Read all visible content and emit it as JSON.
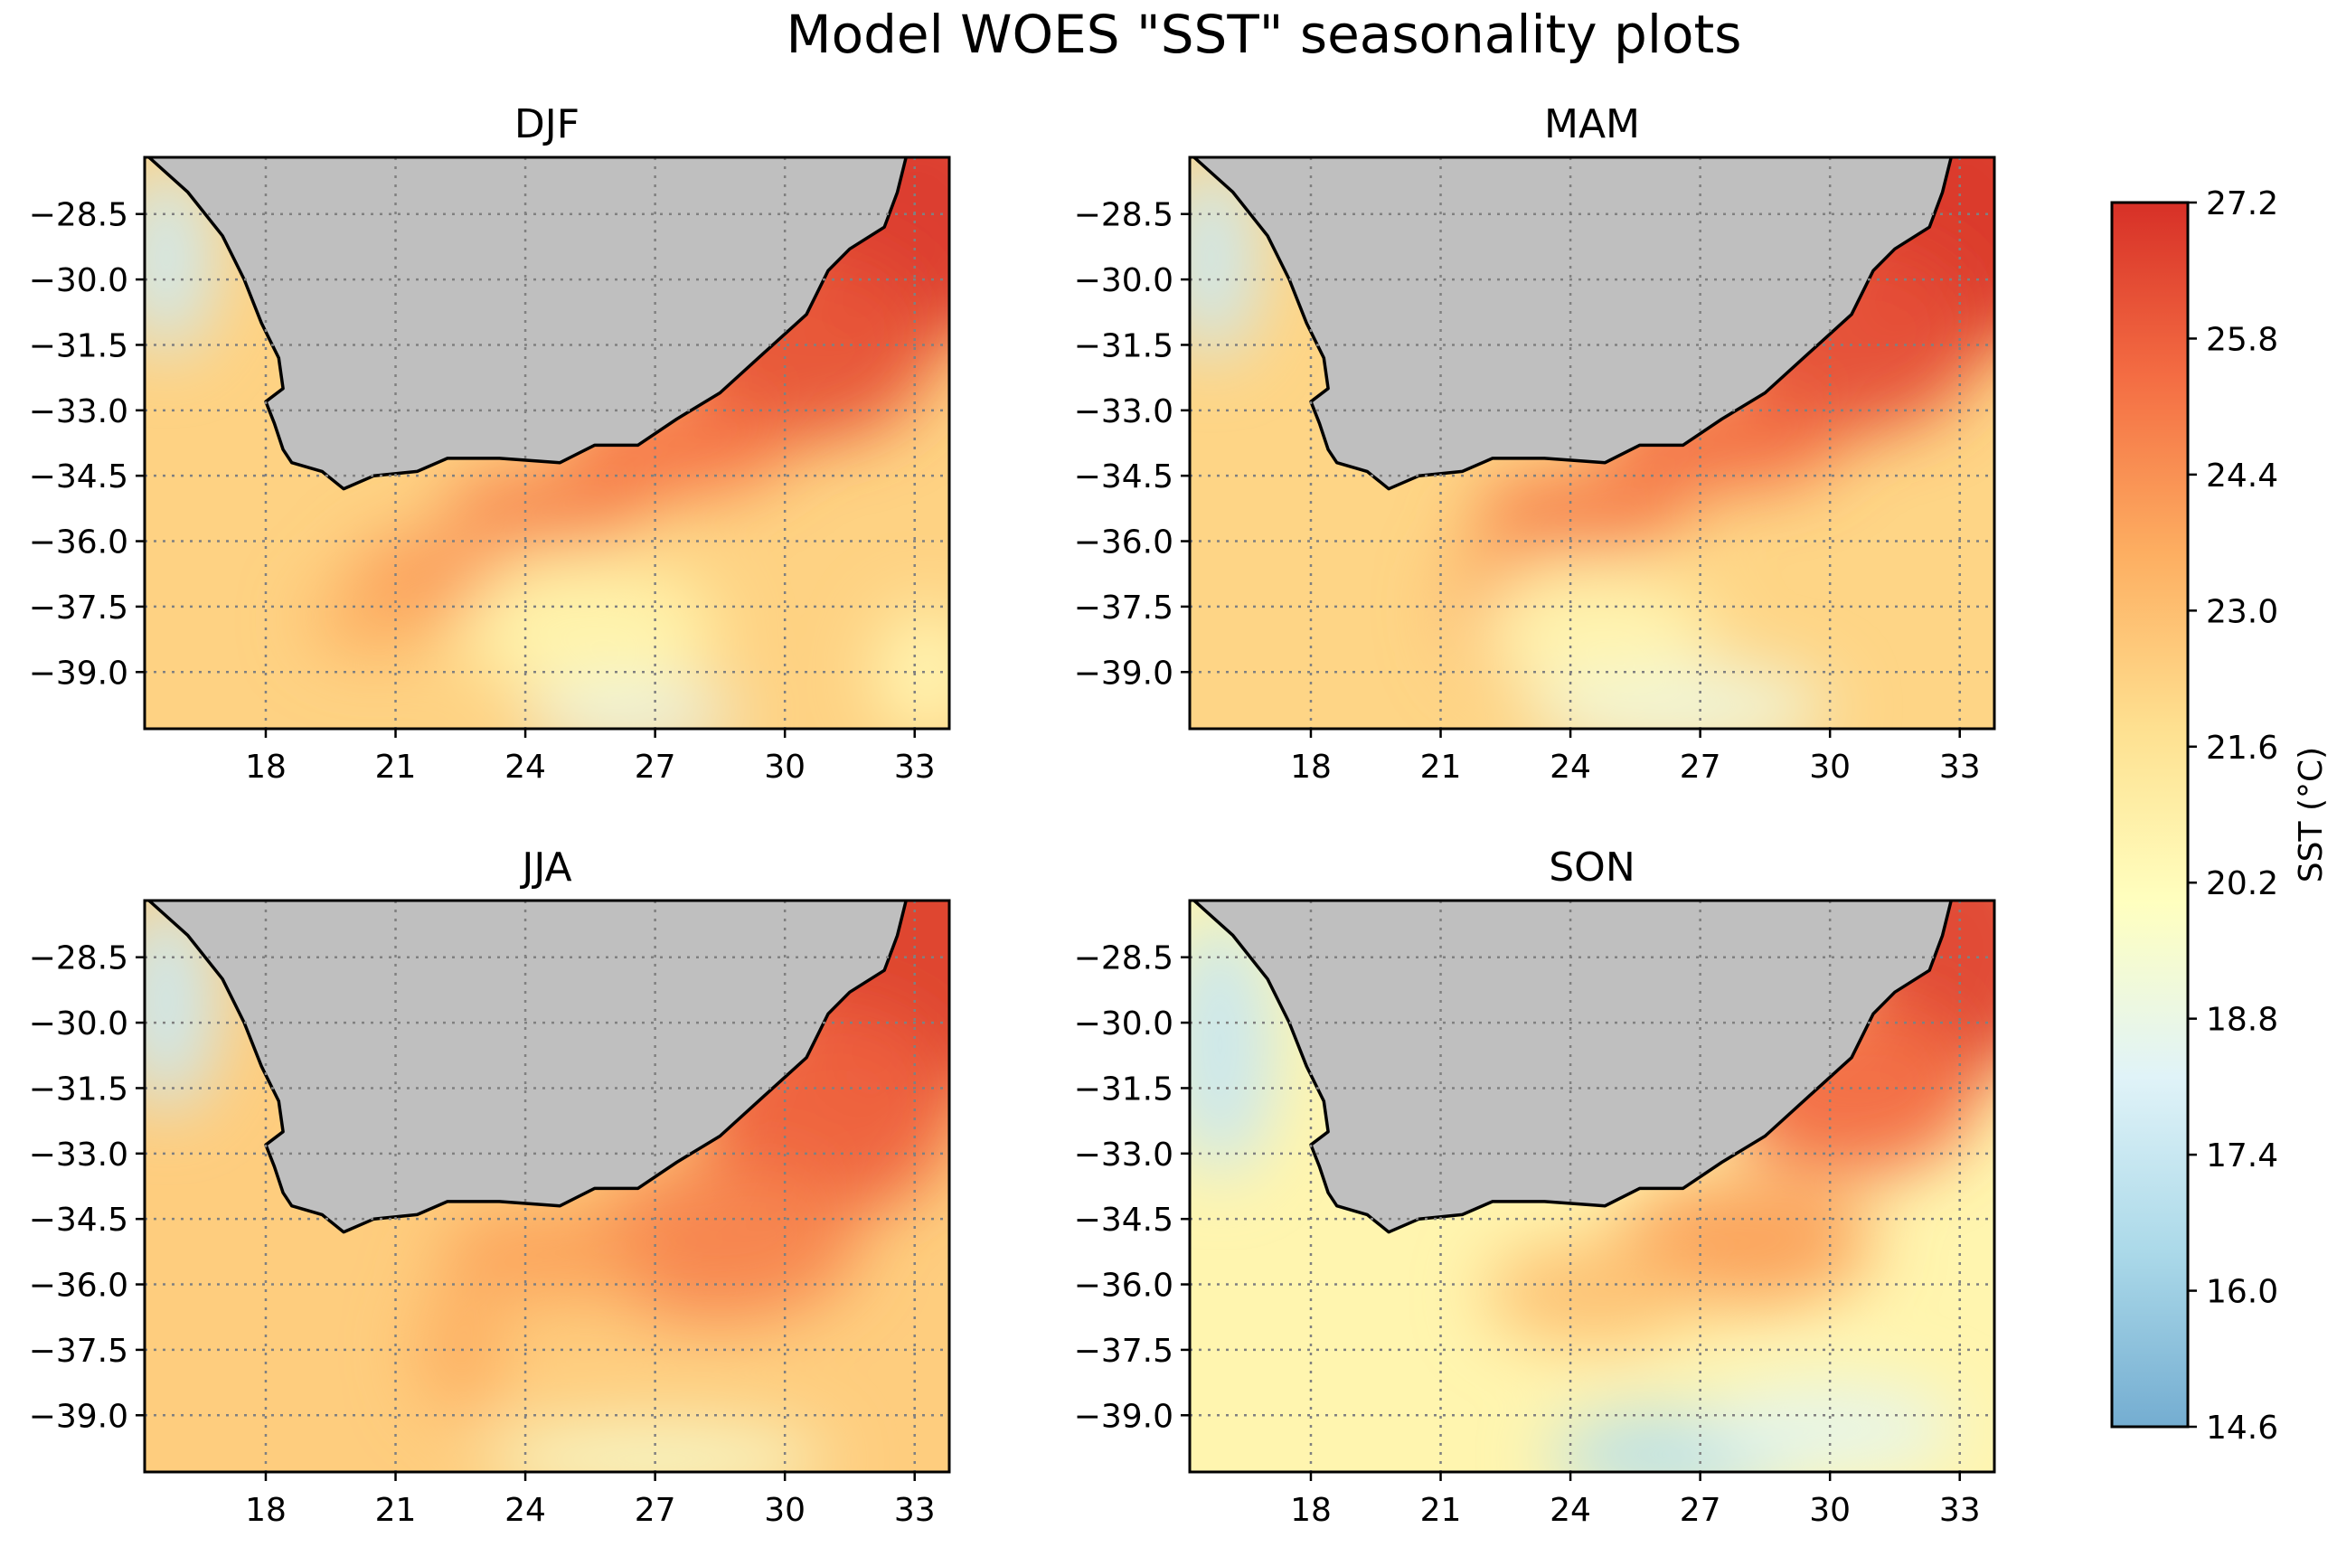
{
  "title": "Model WOES \"SST\" seasonality plots",
  "chart_data": {
    "type": "heatmap",
    "title": "Model WOES \"SST\" seasonality plots",
    "xlim": [
      15.2,
      33.8
    ],
    "ylim": [
      -40.3,
      -27.2
    ],
    "x_ticks": [
      18,
      21,
      24,
      27,
      30,
      33
    ],
    "x_tick_labels": [
      "18",
      "21",
      "24",
      "27",
      "30",
      "33"
    ],
    "y_ticks": [
      -28.5,
      -30.0,
      -31.5,
      -33.0,
      -34.5,
      -36.0,
      -37.5,
      -39.0
    ],
    "y_tick_labels": [
      "−28.5",
      "−30.0",
      "−31.5",
      "−33.0",
      "−34.5",
      "−36.0",
      "−37.5",
      "−39.0"
    ],
    "grid": "dotted",
    "land_color": "#bfbfbf",
    "coastline": [
      [
        15.3,
        -27.2
      ],
      [
        16.2,
        -28.0
      ],
      [
        17.0,
        -29.0
      ],
      [
        17.5,
        -30.0
      ],
      [
        17.9,
        -31.0
      ],
      [
        18.3,
        -31.8
      ],
      [
        18.4,
        -32.5
      ],
      [
        18.0,
        -32.8
      ],
      [
        18.2,
        -33.3
      ],
      [
        18.4,
        -33.9
      ],
      [
        18.6,
        -34.2
      ],
      [
        19.3,
        -34.4
      ],
      [
        19.8,
        -34.8
      ],
      [
        20.5,
        -34.5
      ],
      [
        21.5,
        -34.4
      ],
      [
        22.2,
        -34.1
      ],
      [
        23.4,
        -34.1
      ],
      [
        24.8,
        -34.2
      ],
      [
        25.6,
        -33.8
      ],
      [
        26.6,
        -33.8
      ],
      [
        27.5,
        -33.2
      ],
      [
        28.5,
        -32.6
      ],
      [
        29.5,
        -31.7
      ],
      [
        30.5,
        -30.8
      ],
      [
        31.0,
        -29.8
      ],
      [
        31.5,
        -29.3
      ],
      [
        32.3,
        -28.8
      ],
      [
        32.6,
        -28.0
      ],
      [
        32.8,
        -27.2
      ]
    ],
    "panels": [
      {
        "title": "DJF",
        "base_sst": 22.3,
        "features": [
          {
            "kind": "warm",
            "x": 33.0,
            "y": -28.5,
            "sst": 27.0,
            "rx": 3.0,
            "ry": 3.0
          },
          {
            "kind": "warm",
            "x": 30.5,
            "y": -31.5,
            "sst": 26.2,
            "rx": 3.0,
            "ry": 2.2
          },
          {
            "kind": "warm",
            "x": 27.5,
            "y": -33.8,
            "sst": 25.3,
            "rx": 2.6,
            "ry": 1.1
          },
          {
            "kind": "warm",
            "x": 24.5,
            "y": -35.2,
            "sst": 24.8,
            "rx": 2.4,
            "ry": 0.9
          },
          {
            "kind": "warm",
            "x": 21.8,
            "y": -36.8,
            "sst": 24.3,
            "rx": 1.8,
            "ry": 0.9
          },
          {
            "kind": "warm",
            "x": 20.5,
            "y": -37.8,
            "sst": 23.6,
            "rx": 1.5,
            "ry": 0.8
          },
          {
            "kind": "cool",
            "x": 15.7,
            "y": -29.5,
            "sst": 17.6,
            "rx": 1.1,
            "ry": 2.2
          },
          {
            "kind": "cool",
            "x": 26.5,
            "y": -40.0,
            "sst": 18.5,
            "rx": 2.5,
            "ry": 0.7
          },
          {
            "kind": "cool",
            "x": 25.5,
            "y": -38.0,
            "sst": 20.6,
            "rx": 3.0,
            "ry": 1.5
          },
          {
            "kind": "cool",
            "x": 33.3,
            "y": -39.0,
            "sst": 20.4,
            "rx": 1.2,
            "ry": 1.5
          }
        ]
      },
      {
        "title": "MAM",
        "base_sst": 22.2,
        "features": [
          {
            "kind": "warm",
            "x": 33.0,
            "y": -28.5,
            "sst": 27.1,
            "rx": 3.0,
            "ry": 3.2
          },
          {
            "kind": "warm",
            "x": 30.5,
            "y": -31.3,
            "sst": 26.3,
            "rx": 3.0,
            "ry": 2.2
          },
          {
            "kind": "warm",
            "x": 27.5,
            "y": -33.7,
            "sst": 25.5,
            "rx": 2.8,
            "ry": 1.1
          },
          {
            "kind": "warm",
            "x": 24.3,
            "y": -35.3,
            "sst": 25.0,
            "rx": 2.5,
            "ry": 0.9
          },
          {
            "kind": "warm",
            "x": 22.2,
            "y": -37.5,
            "sst": 24.0,
            "rx": 1.0,
            "ry": 1.6
          },
          {
            "kind": "cool",
            "x": 15.7,
            "y": -29.5,
            "sst": 17.5,
            "rx": 1.1,
            "ry": 2.3
          },
          {
            "kind": "cool",
            "x": 26.5,
            "y": -39.8,
            "sst": 19.0,
            "rx": 3.5,
            "ry": 1.0
          },
          {
            "kind": "cool",
            "x": 24.5,
            "y": -38.0,
            "sst": 20.5,
            "rx": 2.8,
            "ry": 1.3
          }
        ]
      },
      {
        "title": "JJA",
        "base_sst": 22.5,
        "features": [
          {
            "kind": "warm",
            "x": 33.0,
            "y": -28.5,
            "sst": 26.8,
            "rx": 3.2,
            "ry": 3.4
          },
          {
            "kind": "warm",
            "x": 31.0,
            "y": -32.0,
            "sst": 25.8,
            "rx": 3.0,
            "ry": 2.4
          },
          {
            "kind": "warm",
            "x": 28.5,
            "y": -35.0,
            "sst": 24.8,
            "rx": 3.2,
            "ry": 1.8
          },
          {
            "kind": "warm",
            "x": 24.5,
            "y": -35.3,
            "sst": 24.0,
            "rx": 2.5,
            "ry": 1.0
          },
          {
            "kind": "warm",
            "x": 22.5,
            "y": -37.5,
            "sst": 23.6,
            "rx": 1.0,
            "ry": 1.5
          },
          {
            "kind": "cool",
            "x": 15.7,
            "y": -29.5,
            "sst": 17.5,
            "rx": 1.2,
            "ry": 2.5
          },
          {
            "kind": "cool",
            "x": 27.0,
            "y": -40.0,
            "sst": 19.5,
            "rx": 4.0,
            "ry": 0.8
          }
        ]
      },
      {
        "title": "SON",
        "base_sst": 20.6,
        "features": [
          {
            "kind": "warm",
            "x": 33.0,
            "y": -28.3,
            "sst": 26.7,
            "rx": 2.5,
            "ry": 3.0
          },
          {
            "kind": "warm",
            "x": 30.5,
            "y": -31.5,
            "sst": 25.5,
            "rx": 3.0,
            "ry": 2.0
          },
          {
            "kind": "warm",
            "x": 28.0,
            "y": -35.0,
            "sst": 24.0,
            "rx": 3.0,
            "ry": 1.5
          },
          {
            "kind": "warm",
            "x": 24.5,
            "y": -36.2,
            "sst": 23.0,
            "rx": 2.5,
            "ry": 1.2
          },
          {
            "kind": "cool",
            "x": 15.9,
            "y": -30.5,
            "sst": 17.4,
            "rx": 1.3,
            "ry": 3.0
          },
          {
            "kind": "cool",
            "x": 26.5,
            "y": -39.9,
            "sst": 16.8,
            "rx": 3.0,
            "ry": 1.0
          },
          {
            "kind": "cool",
            "x": 30.0,
            "y": -39.3,
            "sst": 18.5,
            "rx": 3.0,
            "ry": 1.0
          }
        ]
      }
    ],
    "colorbar": {
      "label": "SST (°C)",
      "vmin": 14.6,
      "vmax": 27.2,
      "ticks": [
        27.2,
        25.8,
        24.4,
        23.0,
        21.6,
        20.2,
        18.8,
        17.4,
        16.0,
        14.6
      ],
      "tick_labels": [
        "27.2",
        "25.8",
        "24.4",
        "23.0",
        "21.6",
        "20.2",
        "18.8",
        "17.4",
        "16.0",
        "14.6"
      ],
      "stops": [
        "#74add1",
        "#abd9e9",
        "#e0f3f8",
        "#ffffbf",
        "#fee090",
        "#fdae61",
        "#f46d43",
        "#d73027"
      ]
    }
  }
}
